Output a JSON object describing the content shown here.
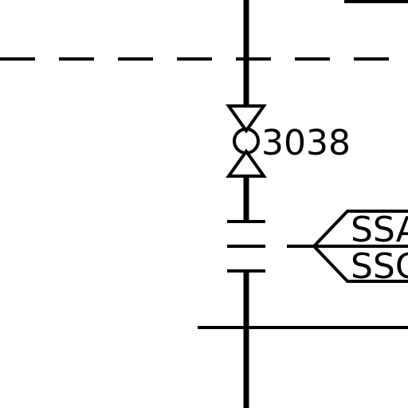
{
  "drawing": {
    "line_color": "#000000",
    "background_color": "#ffffff",
    "valve": {
      "icon": "gate-valve-with-circle",
      "tag": "3038"
    },
    "fitting": {
      "icon": "flange-break"
    },
    "reference_flag": {
      "icon": "hexagon-flag",
      "line_1": "SSA",
      "line_2": "SSC"
    }
  }
}
